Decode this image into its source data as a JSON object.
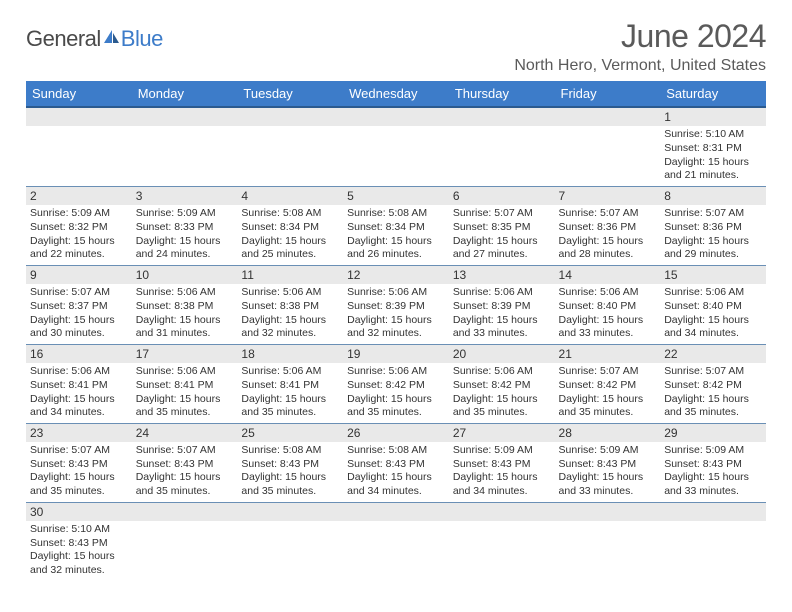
{
  "logo": {
    "general": "General",
    "blue": "Blue"
  },
  "title": "June 2024",
  "location": "North Hero, Vermont, United States",
  "colors": {
    "header_bg": "#3d7cc9",
    "header_border": "#2b5a8f",
    "row_border": "#6a8fb5",
    "daynum_bg": "#e9e9e9",
    "text": "#333333",
    "title_text": "#5a5a5a",
    "logo_blue": "#3d7cc9",
    "logo_gray": "#4a4a4a",
    "background": "#ffffff"
  },
  "day_headers": [
    "Sunday",
    "Monday",
    "Tuesday",
    "Wednesday",
    "Thursday",
    "Friday",
    "Saturday"
  ],
  "weeks": [
    [
      null,
      null,
      null,
      null,
      null,
      null,
      {
        "n": "1",
        "sr": "5:10 AM",
        "ss": "8:31 PM",
        "dl": "15 hours and 21 minutes."
      }
    ],
    [
      {
        "n": "2",
        "sr": "5:09 AM",
        "ss": "8:32 PM",
        "dl": "15 hours and 22 minutes."
      },
      {
        "n": "3",
        "sr": "5:09 AM",
        "ss": "8:33 PM",
        "dl": "15 hours and 24 minutes."
      },
      {
        "n": "4",
        "sr": "5:08 AM",
        "ss": "8:34 PM",
        "dl": "15 hours and 25 minutes."
      },
      {
        "n": "5",
        "sr": "5:08 AM",
        "ss": "8:34 PM",
        "dl": "15 hours and 26 minutes."
      },
      {
        "n": "6",
        "sr": "5:07 AM",
        "ss": "8:35 PM",
        "dl": "15 hours and 27 minutes."
      },
      {
        "n": "7",
        "sr": "5:07 AM",
        "ss": "8:36 PM",
        "dl": "15 hours and 28 minutes."
      },
      {
        "n": "8",
        "sr": "5:07 AM",
        "ss": "8:36 PM",
        "dl": "15 hours and 29 minutes."
      }
    ],
    [
      {
        "n": "9",
        "sr": "5:07 AM",
        "ss": "8:37 PM",
        "dl": "15 hours and 30 minutes."
      },
      {
        "n": "10",
        "sr": "5:06 AM",
        "ss": "8:38 PM",
        "dl": "15 hours and 31 minutes."
      },
      {
        "n": "11",
        "sr": "5:06 AM",
        "ss": "8:38 PM",
        "dl": "15 hours and 32 minutes."
      },
      {
        "n": "12",
        "sr": "5:06 AM",
        "ss": "8:39 PM",
        "dl": "15 hours and 32 minutes."
      },
      {
        "n": "13",
        "sr": "5:06 AM",
        "ss": "8:39 PM",
        "dl": "15 hours and 33 minutes."
      },
      {
        "n": "14",
        "sr": "5:06 AM",
        "ss": "8:40 PM",
        "dl": "15 hours and 33 minutes."
      },
      {
        "n": "15",
        "sr": "5:06 AM",
        "ss": "8:40 PM",
        "dl": "15 hours and 34 minutes."
      }
    ],
    [
      {
        "n": "16",
        "sr": "5:06 AM",
        "ss": "8:41 PM",
        "dl": "15 hours and 34 minutes."
      },
      {
        "n": "17",
        "sr": "5:06 AM",
        "ss": "8:41 PM",
        "dl": "15 hours and 35 minutes."
      },
      {
        "n": "18",
        "sr": "5:06 AM",
        "ss": "8:41 PM",
        "dl": "15 hours and 35 minutes."
      },
      {
        "n": "19",
        "sr": "5:06 AM",
        "ss": "8:42 PM",
        "dl": "15 hours and 35 minutes."
      },
      {
        "n": "20",
        "sr": "5:06 AM",
        "ss": "8:42 PM",
        "dl": "15 hours and 35 minutes."
      },
      {
        "n": "21",
        "sr": "5:07 AM",
        "ss": "8:42 PM",
        "dl": "15 hours and 35 minutes."
      },
      {
        "n": "22",
        "sr": "5:07 AM",
        "ss": "8:42 PM",
        "dl": "15 hours and 35 minutes."
      }
    ],
    [
      {
        "n": "23",
        "sr": "5:07 AM",
        "ss": "8:43 PM",
        "dl": "15 hours and 35 minutes."
      },
      {
        "n": "24",
        "sr": "5:07 AM",
        "ss": "8:43 PM",
        "dl": "15 hours and 35 minutes."
      },
      {
        "n": "25",
        "sr": "5:08 AM",
        "ss": "8:43 PM",
        "dl": "15 hours and 35 minutes."
      },
      {
        "n": "26",
        "sr": "5:08 AM",
        "ss": "8:43 PM",
        "dl": "15 hours and 34 minutes."
      },
      {
        "n": "27",
        "sr": "5:09 AM",
        "ss": "8:43 PM",
        "dl": "15 hours and 34 minutes."
      },
      {
        "n": "28",
        "sr": "5:09 AM",
        "ss": "8:43 PM",
        "dl": "15 hours and 33 minutes."
      },
      {
        "n": "29",
        "sr": "5:09 AM",
        "ss": "8:43 PM",
        "dl": "15 hours and 33 minutes."
      }
    ],
    [
      {
        "n": "30",
        "sr": "5:10 AM",
        "ss": "8:43 PM",
        "dl": "15 hours and 32 minutes."
      },
      null,
      null,
      null,
      null,
      null,
      null
    ]
  ],
  "labels": {
    "sunrise": "Sunrise:",
    "sunset": "Sunset:",
    "daylight": "Daylight:"
  }
}
